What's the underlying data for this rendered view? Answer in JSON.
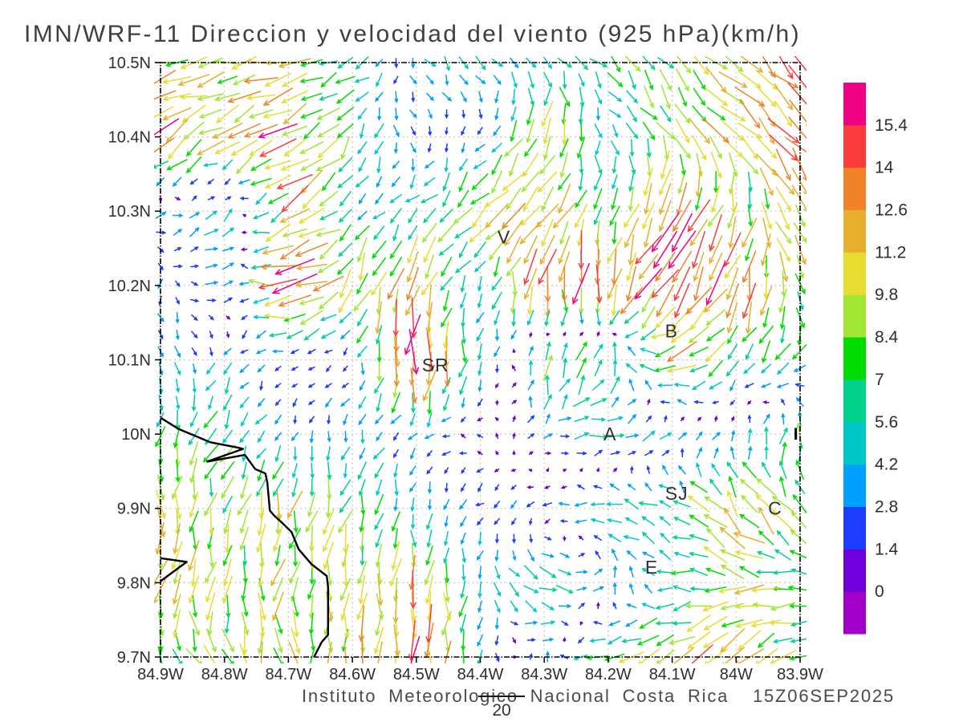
{
  "title": "IMN/WRF-11 Direccion y velocidad del viento (925 hPa)(km/h)",
  "footer": {
    "text": "Instituto Meteorologico Nacional Costa Rica  15Z06SEP2025",
    "page_number": "20"
  },
  "chart_data": {
    "type": "vector_field",
    "title": "IMN/WRF-11 Direccion y velocidad del viento (925 hPa)(km/h)",
    "units": "km/h",
    "level": "925 hPa",
    "valid_time": "15Z06SEP2025",
    "lon_range": [
      -84.9,
      -83.9
    ],
    "lat_range": [
      9.7,
      10.5
    ],
    "grid": "dotted, every 0.1 degree",
    "x_tick_labels": [
      "84.9W",
      "84.8W",
      "84.7W",
      "84.6W",
      "84.5W",
      "84.4W",
      "84.3W",
      "84.2W",
      "84.1W",
      "84W",
      "83.9W"
    ],
    "x_tick_values": [
      -84.9,
      -84.8,
      -84.7,
      -84.6,
      -84.5,
      -84.4,
      -84.3,
      -84.2,
      -84.1,
      -84.0,
      -83.9
    ],
    "y_tick_labels": [
      "10.5N",
      "10.4N",
      "10.3N",
      "10.2N",
      "10.1N",
      "10N",
      "9.9N",
      "9.8N",
      "9.7N"
    ],
    "y_tick_values": [
      10.5,
      10.4,
      10.3,
      10.2,
      10.1,
      10.0,
      9.9,
      9.8,
      9.7
    ],
    "colorbar": {
      "levels": [
        0,
        1.4,
        2.8,
        4.2,
        5.6,
        7,
        8.4,
        9.8,
        11.2,
        12.6,
        14,
        15.4
      ],
      "colors": [
        "#A000C8",
        "#6E00DC",
        "#1E3CFF",
        "#00A0FF",
        "#00C8C8",
        "#00D28C",
        "#00DC00",
        "#A0E632",
        "#E6DC32",
        "#E6AF2D",
        "#F08228",
        "#FA3C3C",
        "#F00082"
      ],
      "unit": "km/h",
      "position": "right"
    },
    "wind_grid_kmh": {
      "comment": "u,v wind components (km/h) on a 0.1-degree control grid, rows north to south",
      "lats": [
        10.5,
        10.4,
        10.3,
        10.2,
        10.1,
        10.0,
        9.9,
        9.8,
        9.7
      ],
      "lons": [
        -84.9,
        -84.8,
        -84.7,
        -84.6,
        -84.5,
        -84.4,
        -84.3,
        -84.2,
        -84.1,
        -84.0,
        -83.9
      ],
      "uv": [
        [
          [
            -10,
            -1
          ],
          [
            -8,
            -1
          ],
          [
            -9,
            -3
          ],
          [
            -6,
            -2
          ],
          [
            2,
            -3
          ],
          [
            3,
            -4
          ],
          [
            3,
            -4
          ],
          [
            4,
            -4
          ],
          [
            5,
            -6
          ],
          [
            7,
            -7
          ],
          [
            8,
            -8
          ]
        ],
        [
          [
            -11,
            -8
          ],
          [
            -9,
            -5
          ],
          [
            -11,
            -7
          ],
          [
            -2,
            -6
          ],
          [
            1,
            -2
          ],
          [
            -1,
            -2
          ],
          [
            -4,
            -10
          ],
          [
            2,
            -3
          ],
          [
            5,
            -7
          ],
          [
            7,
            -8
          ],
          [
            8,
            -9
          ]
        ],
        [
          [
            3,
            1
          ],
          [
            4,
            3
          ],
          [
            -9,
            -6
          ],
          [
            -4,
            -2
          ],
          [
            -4,
            -4
          ],
          [
            -7,
            -7
          ],
          [
            -8,
            -7
          ],
          [
            -1,
            -7
          ],
          [
            -7,
            -12
          ],
          [
            -3,
            -8
          ],
          [
            5,
            -8
          ]
        ],
        [
          [
            0,
            -3
          ],
          [
            4,
            2
          ],
          [
            -16,
            -2
          ],
          [
            -4,
            -9
          ],
          [
            -3,
            -10
          ],
          [
            -2,
            -3
          ],
          [
            -1,
            -15
          ],
          [
            -3,
            -13
          ],
          [
            -8,
            -12
          ],
          [
            -5,
            -13
          ],
          [
            4,
            -8
          ]
        ],
        [
          [
            2,
            -3
          ],
          [
            -2,
            -3
          ],
          [
            -1,
            -1
          ],
          [
            -1,
            -1
          ],
          [
            -1,
            -16
          ],
          [
            -1,
            -6
          ],
          [
            1,
            8
          ],
          [
            2,
            8
          ],
          [
            -11,
            -2
          ],
          [
            -4,
            -5
          ],
          [
            -5,
            -4
          ]
        ],
        [
          [
            -2,
            -6
          ],
          [
            -3,
            -6
          ],
          [
            -1,
            -2
          ],
          [
            -1,
            -4
          ],
          [
            -3,
            -1
          ],
          [
            -1,
            1
          ],
          [
            2,
            1
          ],
          [
            6,
            0
          ],
          [
            3,
            2
          ],
          [
            2,
            2
          ],
          [
            1,
            7
          ]
        ],
        [
          [
            0,
            -9
          ],
          [
            -2,
            -8
          ],
          [
            -2,
            -9
          ],
          [
            -2,
            -7
          ],
          [
            0,
            -4
          ],
          [
            -2,
            -2
          ],
          [
            -2,
            -1
          ],
          [
            -6,
            1
          ],
          [
            -5,
            3
          ],
          [
            -7,
            9
          ],
          [
            -5,
            6
          ]
        ],
        [
          [
            -2,
            -9
          ],
          [
            -2,
            -9
          ],
          [
            -1,
            -8
          ],
          [
            -1,
            -9
          ],
          [
            -1,
            -11
          ],
          [
            -1,
            -4
          ],
          [
            7,
            -3
          ],
          [
            2,
            4
          ],
          [
            -5,
            1
          ],
          [
            -9,
            1
          ],
          [
            -7,
            0
          ]
        ],
        [
          [
            3,
            -7
          ],
          [
            4,
            -8
          ],
          [
            1,
            -9
          ],
          [
            0,
            -10
          ],
          [
            -1,
            -15
          ],
          [
            0,
            -4
          ],
          [
            1,
            3
          ],
          [
            -7,
            -4
          ],
          [
            -8,
            -5
          ],
          [
            -10,
            -7
          ],
          [
            -7,
            -3
          ]
        ]
      ]
    },
    "city_labels": [
      {
        "label": "V",
        "lat": 10.265,
        "lon": -84.363
      },
      {
        "label": "B",
        "lat": 10.139,
        "lon": -84.101
      },
      {
        "label": "SR",
        "lat": 10.093,
        "lon": -84.47
      },
      {
        "label": "A",
        "lat": 10.0,
        "lon": -84.197
      },
      {
        "label": "SJ",
        "lat": 9.92,
        "lon": -84.093
      },
      {
        "label": "C",
        "lat": 9.9,
        "lon": -83.939
      },
      {
        "label": "E",
        "lat": 9.821,
        "lon": -84.132
      },
      {
        "label": "I",
        "lat": 10.001,
        "lon": -83.906
      }
    ],
    "coastline": {
      "main": [
        [
          -84.9,
          10.022
        ],
        [
          -84.872,
          10.007
        ],
        [
          -84.822,
          9.989
        ],
        [
          -84.78,
          9.982
        ],
        [
          -84.771,
          9.98
        ],
        [
          -84.827,
          9.963
        ],
        [
          -84.768,
          9.972
        ],
        [
          -84.752,
          9.953
        ],
        [
          -84.736,
          9.947
        ],
        [
          -84.733,
          9.935
        ],
        [
          -84.729,
          9.897
        ],
        [
          -84.722,
          9.89
        ],
        [
          -84.709,
          9.88
        ],
        [
          -84.695,
          9.868
        ],
        [
          -84.684,
          9.845
        ],
        [
          -84.664,
          9.825
        ],
        [
          -84.64,
          9.809
        ],
        [
          -84.638,
          9.794
        ],
        [
          -84.638,
          9.73
        ],
        [
          -84.648,
          9.72
        ],
        [
          -84.66,
          9.7
        ]
      ],
      "spit": [
        [
          -84.9,
          9.833
        ],
        [
          -84.859,
          9.828
        ],
        [
          -84.9,
          9.802
        ]
      ]
    }
  }
}
